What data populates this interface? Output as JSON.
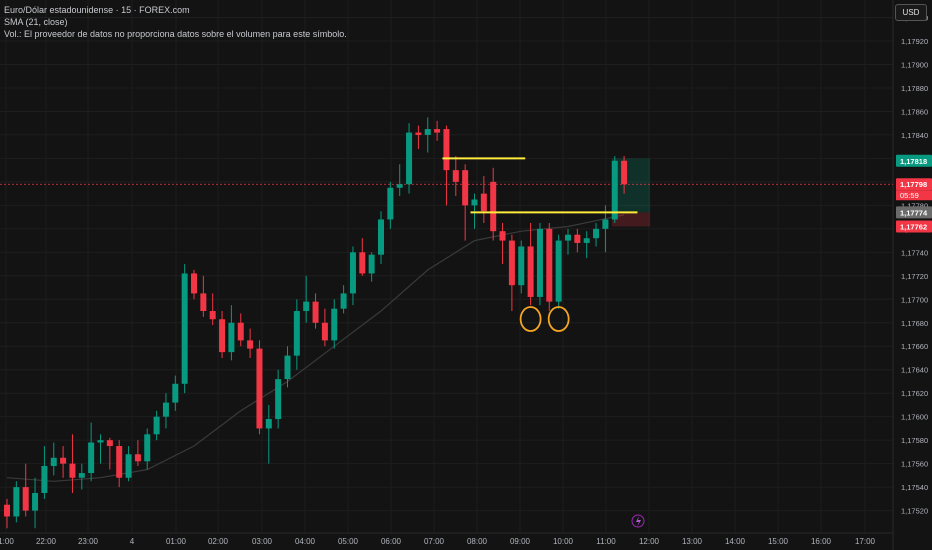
{
  "legend": {
    "symbol": "Euro/Dólar estadounidense · 15 · FOREX.com",
    "indicator": "SMA (21, close)",
    "volume_note": "Vol.: El proveedor de datos no proporciona datos sobre el volumen para este símbolo."
  },
  "currency_button": "USD",
  "countdown": "05:59",
  "colors": {
    "background": "#131313",
    "up": "#089981",
    "down": "#f23645",
    "sma": "#2a2a2a",
    "level": "#ffeb3b",
    "marker": "#f5a623",
    "current": "#f23645"
  },
  "chart_data": {
    "type": "candlestick",
    "ylim": [
      1.17512,
      1.17943
    ],
    "y_ticks": [
      "1,17520",
      "1,17540",
      "1,17560",
      "1,17580",
      "1,17600",
      "1,17620",
      "1,17640",
      "1,17660",
      "1,17680",
      "1,17700",
      "1,17720",
      "1,17740",
      "1,17760",
      "1,17780",
      "1,17800",
      "1,17820",
      "1,17840",
      "1,17860",
      "1,17880",
      "1,17900",
      "1,17920",
      "1,17940"
    ],
    "x_ticks": [
      "1:00",
      "22:00",
      "23:00",
      "4",
      "01:00",
      "02:00",
      "03:00",
      "04:00",
      "05:00",
      "06:00",
      "07:00",
      "08:00",
      "09:00",
      "10:00",
      "11:00",
      "12:00",
      "13:00",
      "14:00",
      "15:00",
      "16:00",
      "17:00"
    ],
    "price_labels": [
      {
        "label": "1,17818",
        "value": 1.17818,
        "color": "#089981"
      },
      {
        "label": "1,17798",
        "value": 1.17798,
        "color": "#f23645"
      },
      {
        "label": "1,17774",
        "value": 1.17774,
        "color": "#6b6b6b"
      },
      {
        "label": "1,17762",
        "value": 1.17762,
        "color": "#f23645"
      }
    ],
    "current_price": 1.17798,
    "candles": [
      {
        "o": 1.17525,
        "h": 1.1753,
        "l": 1.17505,
        "c": 1.17515
      },
      {
        "o": 1.17515,
        "h": 1.17545,
        "l": 1.1751,
        "c": 1.1754
      },
      {
        "o": 1.1754,
        "h": 1.1756,
        "l": 1.17515,
        "c": 1.1752
      },
      {
        "o": 1.1752,
        "h": 1.17548,
        "l": 1.17505,
        "c": 1.17535
      },
      {
        "o": 1.17535,
        "h": 1.17575,
        "l": 1.1753,
        "c": 1.17558
      },
      {
        "o": 1.17558,
        "h": 1.17578,
        "l": 1.1755,
        "c": 1.17565
      },
      {
        "o": 1.17565,
        "h": 1.17575,
        "l": 1.17548,
        "c": 1.1756
      },
      {
        "o": 1.1756,
        "h": 1.17585,
        "l": 1.17535,
        "c": 1.17548
      },
      {
        "o": 1.17548,
        "h": 1.1756,
        "l": 1.17538,
        "c": 1.17552
      },
      {
        "o": 1.17552,
        "h": 1.17595,
        "l": 1.17545,
        "c": 1.17578
      },
      {
        "o": 1.17578,
        "h": 1.17585,
        "l": 1.1756,
        "c": 1.1758
      },
      {
        "o": 1.1758,
        "h": 1.17582,
        "l": 1.17555,
        "c": 1.17575
      },
      {
        "o": 1.17575,
        "h": 1.1758,
        "l": 1.1754,
        "c": 1.17548
      },
      {
        "o": 1.17548,
        "h": 1.17575,
        "l": 1.17545,
        "c": 1.17568
      },
      {
        "o": 1.17568,
        "h": 1.1758,
        "l": 1.17558,
        "c": 1.17562
      },
      {
        "o": 1.17562,
        "h": 1.1759,
        "l": 1.17555,
        "c": 1.17585
      },
      {
        "o": 1.17585,
        "h": 1.17605,
        "l": 1.1758,
        "c": 1.176
      },
      {
        "o": 1.176,
        "h": 1.1762,
        "l": 1.1759,
        "c": 1.17612
      },
      {
        "o": 1.17612,
        "h": 1.17635,
        "l": 1.17605,
        "c": 1.17628
      },
      {
        "o": 1.17628,
        "h": 1.1773,
        "l": 1.1762,
        "c": 1.17722
      },
      {
        "o": 1.17722,
        "h": 1.17725,
        "l": 1.177,
        "c": 1.17705
      },
      {
        "o": 1.17705,
        "h": 1.1772,
        "l": 1.17685,
        "c": 1.1769
      },
      {
        "o": 1.1769,
        "h": 1.17705,
        "l": 1.17678,
        "c": 1.17683
      },
      {
        "o": 1.17683,
        "h": 1.1769,
        "l": 1.1765,
        "c": 1.17655
      },
      {
        "o": 1.17655,
        "h": 1.17695,
        "l": 1.17648,
        "c": 1.1768
      },
      {
        "o": 1.1768,
        "h": 1.17688,
        "l": 1.1766,
        "c": 1.17665
      },
      {
        "o": 1.17665,
        "h": 1.17675,
        "l": 1.1765,
        "c": 1.17658
      },
      {
        "o": 1.17658,
        "h": 1.17665,
        "l": 1.17585,
        "c": 1.1759
      },
      {
        "o": 1.1759,
        "h": 1.1761,
        "l": 1.1756,
        "c": 1.17598
      },
      {
        "o": 1.17598,
        "h": 1.1764,
        "l": 1.1759,
        "c": 1.17632
      },
      {
        "o": 1.17632,
        "h": 1.1766,
        "l": 1.17625,
        "c": 1.17652
      },
      {
        "o": 1.17652,
        "h": 1.177,
        "l": 1.1764,
        "c": 1.1769
      },
      {
        "o": 1.1769,
        "h": 1.1772,
        "l": 1.1768,
        "c": 1.17698
      },
      {
        "o": 1.17698,
        "h": 1.17705,
        "l": 1.17675,
        "c": 1.1768
      },
      {
        "o": 1.1768,
        "h": 1.17692,
        "l": 1.1766,
        "c": 1.17665
      },
      {
        "o": 1.17665,
        "h": 1.177,
        "l": 1.17658,
        "c": 1.17692
      },
      {
        "o": 1.17692,
        "h": 1.17712,
        "l": 1.17688,
        "c": 1.17705
      },
      {
        "o": 1.17705,
        "h": 1.17745,
        "l": 1.17695,
        "c": 1.1774
      },
      {
        "o": 1.1774,
        "h": 1.17752,
        "l": 1.1772,
        "c": 1.17722
      },
      {
        "o": 1.17722,
        "h": 1.1774,
        "l": 1.17715,
        "c": 1.17738
      },
      {
        "o": 1.17738,
        "h": 1.17775,
        "l": 1.1773,
        "c": 1.17768
      },
      {
        "o": 1.17768,
        "h": 1.178,
        "l": 1.1776,
        "c": 1.17795
      },
      {
        "o": 1.17795,
        "h": 1.17815,
        "l": 1.17788,
        "c": 1.17798
      },
      {
        "o": 1.17798,
        "h": 1.1785,
        "l": 1.1779,
        "c": 1.17842
      },
      {
        "o": 1.17842,
        "h": 1.17848,
        "l": 1.17828,
        "c": 1.1784
      },
      {
        "o": 1.1784,
        "h": 1.17855,
        "l": 1.17825,
        "c": 1.17845
      },
      {
        "o": 1.17845,
        "h": 1.17852,
        "l": 1.17835,
        "c": 1.17842
      },
      {
        "o": 1.17845,
        "h": 1.17848,
        "l": 1.1778,
        "c": 1.1781
      },
      {
        "o": 1.1781,
        "h": 1.17822,
        "l": 1.17788,
        "c": 1.178
      },
      {
        "o": 1.1781,
        "h": 1.17815,
        "l": 1.1775,
        "c": 1.1778
      },
      {
        "o": 1.1778,
        "h": 1.1779,
        "l": 1.1776,
        "c": 1.17785
      },
      {
        "o": 1.1779,
        "h": 1.17805,
        "l": 1.17765,
        "c": 1.17775
      },
      {
        "o": 1.178,
        "h": 1.17812,
        "l": 1.1775,
        "c": 1.17758
      },
      {
        "o": 1.17758,
        "h": 1.17765,
        "l": 1.1773,
        "c": 1.1775
      },
      {
        "o": 1.1775,
        "h": 1.17755,
        "l": 1.1769,
        "c": 1.17712
      },
      {
        "o": 1.17712,
        "h": 1.1775,
        "l": 1.17705,
        "c": 1.17745
      },
      {
        "o": 1.17745,
        "h": 1.17765,
        "l": 1.17695,
        "c": 1.17702
      },
      {
        "o": 1.17702,
        "h": 1.17765,
        "l": 1.17695,
        "c": 1.1776
      },
      {
        "o": 1.1776,
        "h": 1.17765,
        "l": 1.1769,
        "c": 1.17698
      },
      {
        "o": 1.17698,
        "h": 1.17755,
        "l": 1.17692,
        "c": 1.1775
      },
      {
        "o": 1.1775,
        "h": 1.1776,
        "l": 1.17738,
        "c": 1.17755
      },
      {
        "o": 1.17755,
        "h": 1.1776,
        "l": 1.1774,
        "c": 1.17748
      },
      {
        "o": 1.17748,
        "h": 1.17758,
        "l": 1.17735,
        "c": 1.17752
      },
      {
        "o": 1.17752,
        "h": 1.17765,
        "l": 1.17745,
        "c": 1.1776
      },
      {
        "o": 1.1776,
        "h": 1.1778,
        "l": 1.1774,
        "c": 1.17768
      },
      {
        "o": 1.17768,
        "h": 1.17822,
        "l": 1.17765,
        "c": 1.17818
      },
      {
        "o": 1.17818,
        "h": 1.17822,
        "l": 1.1779,
        "c": 1.17798
      }
    ],
    "sma": [
      [
        0,
        1.17548
      ],
      [
        5,
        1.17545
      ],
      [
        10,
        1.17548
      ],
      [
        15,
        1.17555
      ],
      [
        20,
        1.17575
      ],
      [
        25,
        1.17605
      ],
      [
        30,
        1.1763
      ],
      [
        35,
        1.1766
      ],
      [
        40,
        1.1769
      ],
      [
        45,
        1.17725
      ],
      [
        50,
        1.1775
      ],
      [
        55,
        1.17758
      ],
      [
        60,
        1.17762
      ],
      [
        66,
        1.17772
      ]
    ],
    "horizontal_levels": [
      {
        "value": 1.1782,
        "from_index": 47,
        "to_index": 55
      },
      {
        "value": 1.17774,
        "from_index": 50,
        "to_index": 67
      }
    ],
    "highlighted_lows": [
      {
        "index": 56,
        "value": 1.1769
      },
      {
        "index": 59,
        "value": 1.1769
      }
    ],
    "position_box": {
      "from_index": 65,
      "to_index": 69,
      "entry": 1.17774,
      "target": 1.1782,
      "stop": 1.17762
    }
  }
}
